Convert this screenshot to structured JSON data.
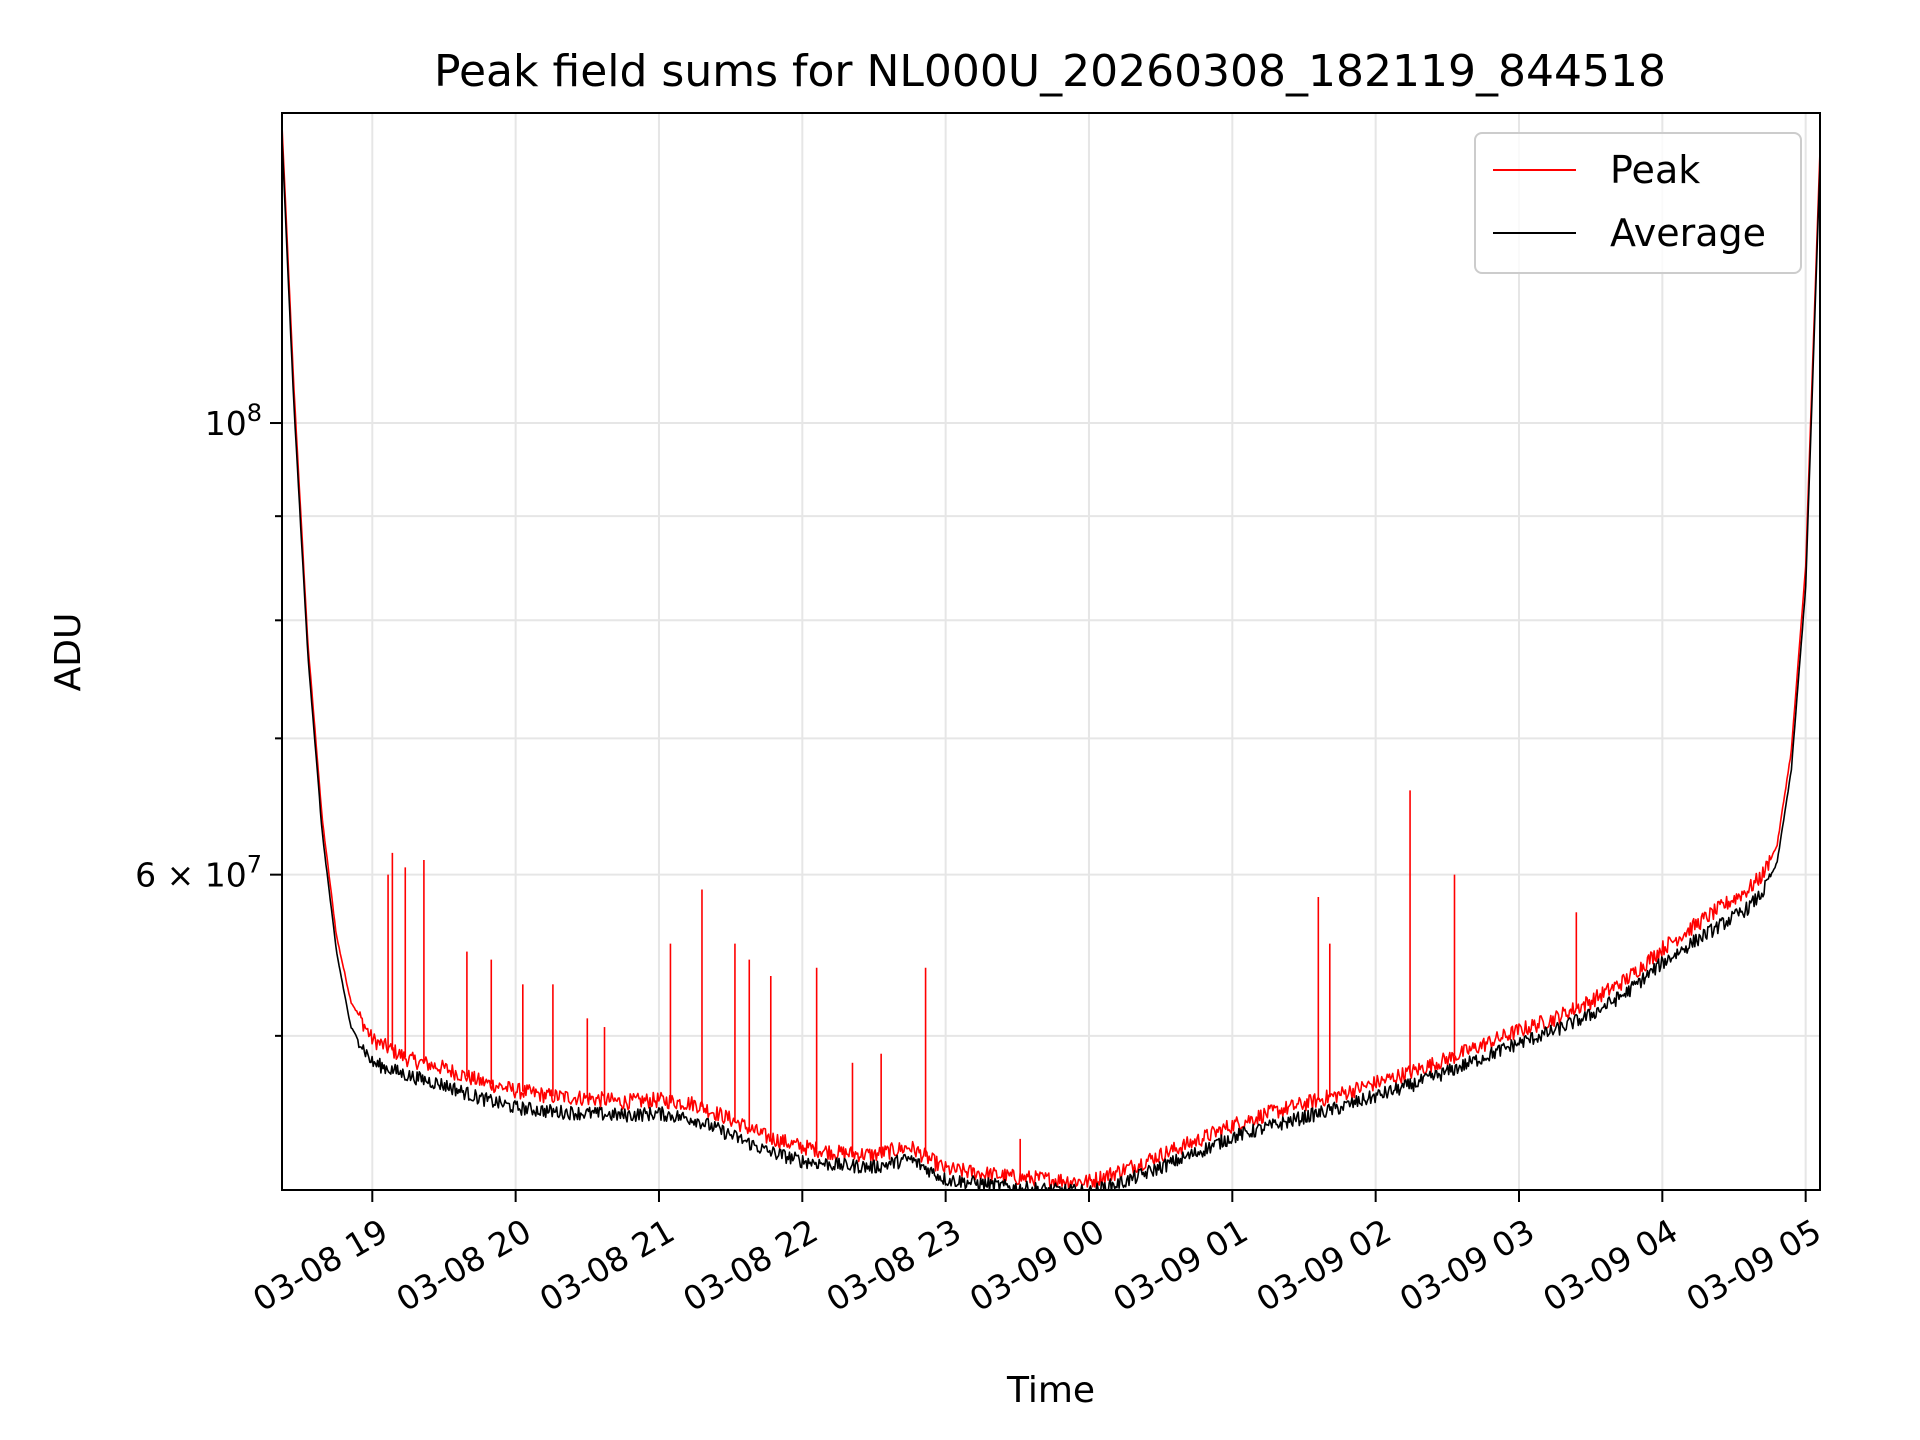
{
  "chart_data": {
    "type": "line",
    "title": "Peak field sums for NL000U_20260308_182119_844518",
    "xlabel": "Time",
    "ylabel": "ADU",
    "yscale": "log",
    "ylim": [
      42000000,
      142000000
    ],
    "xlim_hours": [
      -0.63,
      10.1
    ],
    "grid": true,
    "x_ticks": [
      {
        "label": "03-08 19",
        "hour": 0
      },
      {
        "label": "03-08 20",
        "hour": 1
      },
      {
        "label": "03-08 21",
        "hour": 2
      },
      {
        "label": "03-08 22",
        "hour": 3
      },
      {
        "label": "03-08 23",
        "hour": 4
      },
      {
        "label": "03-09 00",
        "hour": 5
      },
      {
        "label": "03-09 01",
        "hour": 6
      },
      {
        "label": "03-09 02",
        "hour": 7
      },
      {
        "label": "03-09 03",
        "hour": 8
      },
      {
        "label": "03-09 04",
        "hour": 9
      },
      {
        "label": "03-09 05",
        "hour": 10
      }
    ],
    "y_major_ticks": [
      {
        "label": "10",
        "sup": "8",
        "value": 100000000
      },
      {
        "label": "6 × 10",
        "sup": "7",
        "value": 60000000
      }
    ],
    "y_minor_ticks": [
      50000000,
      70000000,
      80000000,
      90000000
    ],
    "legend_position": "top-right",
    "series": [
      {
        "name": "Peak",
        "color": "#ff0000",
        "x": [
          -0.63,
          -0.55,
          -0.45,
          -0.35,
          -0.25,
          -0.15,
          0.0,
          0.25,
          0.5,
          0.75,
          1.0,
          1.25,
          1.5,
          1.75,
          2.0,
          2.25,
          2.5,
          2.75,
          3.0,
          3.25,
          3.5,
          3.75,
          4.0,
          4.25,
          4.5,
          4.75,
          5.0,
          5.25,
          5.5,
          5.75,
          6.0,
          6.25,
          6.5,
          6.75,
          7.0,
          7.25,
          7.5,
          7.75,
          8.0,
          8.25,
          8.5,
          8.75,
          9.0,
          9.25,
          9.5,
          9.6,
          9.7,
          9.8,
          9.9,
          10.0,
          10.1
        ],
        "y": [
          140000000,
          105000000,
          78000000,
          64000000,
          56000000,
          52000000,
          49800000,
          48700000,
          48200000,
          47500000,
          47000000,
          46700000,
          46600000,
          46400000,
          46500000,
          46300000,
          45500000,
          44600000,
          44100000,
          43800000,
          43700000,
          44100000,
          43000000,
          42800000,
          42600000,
          42500000,
          42400000,
          43000000,
          43700000,
          44400000,
          45200000,
          45800000,
          46300000,
          46800000,
          47400000,
          48000000,
          48700000,
          49500000,
          50300000,
          51000000,
          52000000,
          53300000,
          55200000,
          56800000,
          58400000,
          59000000,
          60000000,
          62000000,
          69000000,
          85000000,
          136000000
        ]
      },
      {
        "name": "Average",
        "color": "#000000",
        "x": [
          -0.63,
          -0.55,
          -0.45,
          -0.35,
          -0.25,
          -0.15,
          0.0,
          0.25,
          0.5,
          0.75,
          1.0,
          1.25,
          1.5,
          1.75,
          2.0,
          2.25,
          2.5,
          2.75,
          3.0,
          3.25,
          3.5,
          3.75,
          4.0,
          4.25,
          4.5,
          4.75,
          5.0,
          5.25,
          5.5,
          5.75,
          6.0,
          6.25,
          6.5,
          6.75,
          7.0,
          7.25,
          7.5,
          7.75,
          8.0,
          8.25,
          8.5,
          8.75,
          9.0,
          9.25,
          9.5,
          9.6,
          9.7,
          9.8,
          9.9,
          10.0,
          10.1
        ],
        "y": [
          138000000,
          103000000,
          77000000,
          63000000,
          55000000,
          50500000,
          48500000,
          47800000,
          47300000,
          46600000,
          46100000,
          45900000,
          45800000,
          45700000,
          45800000,
          45500000,
          44700000,
          43900000,
          43400000,
          43200000,
          43100000,
          43500000,
          42500000,
          42300000,
          42100000,
          42000000,
          41900000,
          42400000,
          43100000,
          43800000,
          44600000,
          45100000,
          45600000,
          46100000,
          46700000,
          47300000,
          48000000,
          48800000,
          49600000,
          50300000,
          51200000,
          52500000,
          54300000,
          55800000,
          57200000,
          57800000,
          58800000,
          60800000,
          67500000,
          83000000,
          134000000
        ]
      }
    ],
    "spikes": {
      "description": "Isolated Peak spikes above baseline",
      "x": [
        0.11,
        0.14,
        0.23,
        0.36,
        0.66,
        0.83,
        1.05,
        1.26,
        1.5,
        1.62,
        2.08,
        2.3,
        2.53,
        2.63,
        2.78,
        3.1,
        3.35,
        3.55,
        3.86,
        4.52,
        6.6,
        6.68,
        7.24,
        7.55,
        8.4
      ],
      "y": [
        60000000,
        61500000,
        60500000,
        61000000,
        55000000,
        54500000,
        53000000,
        53000000,
        51000000,
        50500000,
        55500000,
        59000000,
        55500000,
        54500000,
        53500000,
        54000000,
        48500000,
        49000000,
        54000000,
        44500000,
        58500000,
        55500000,
        66000000,
        60000000,
        57500000
      ]
    }
  },
  "colors": {
    "peak": "#ff0000",
    "average": "#000000",
    "grid": "#e6e6e6",
    "axes": "#000000",
    "legend_border": "#cccccc"
  }
}
